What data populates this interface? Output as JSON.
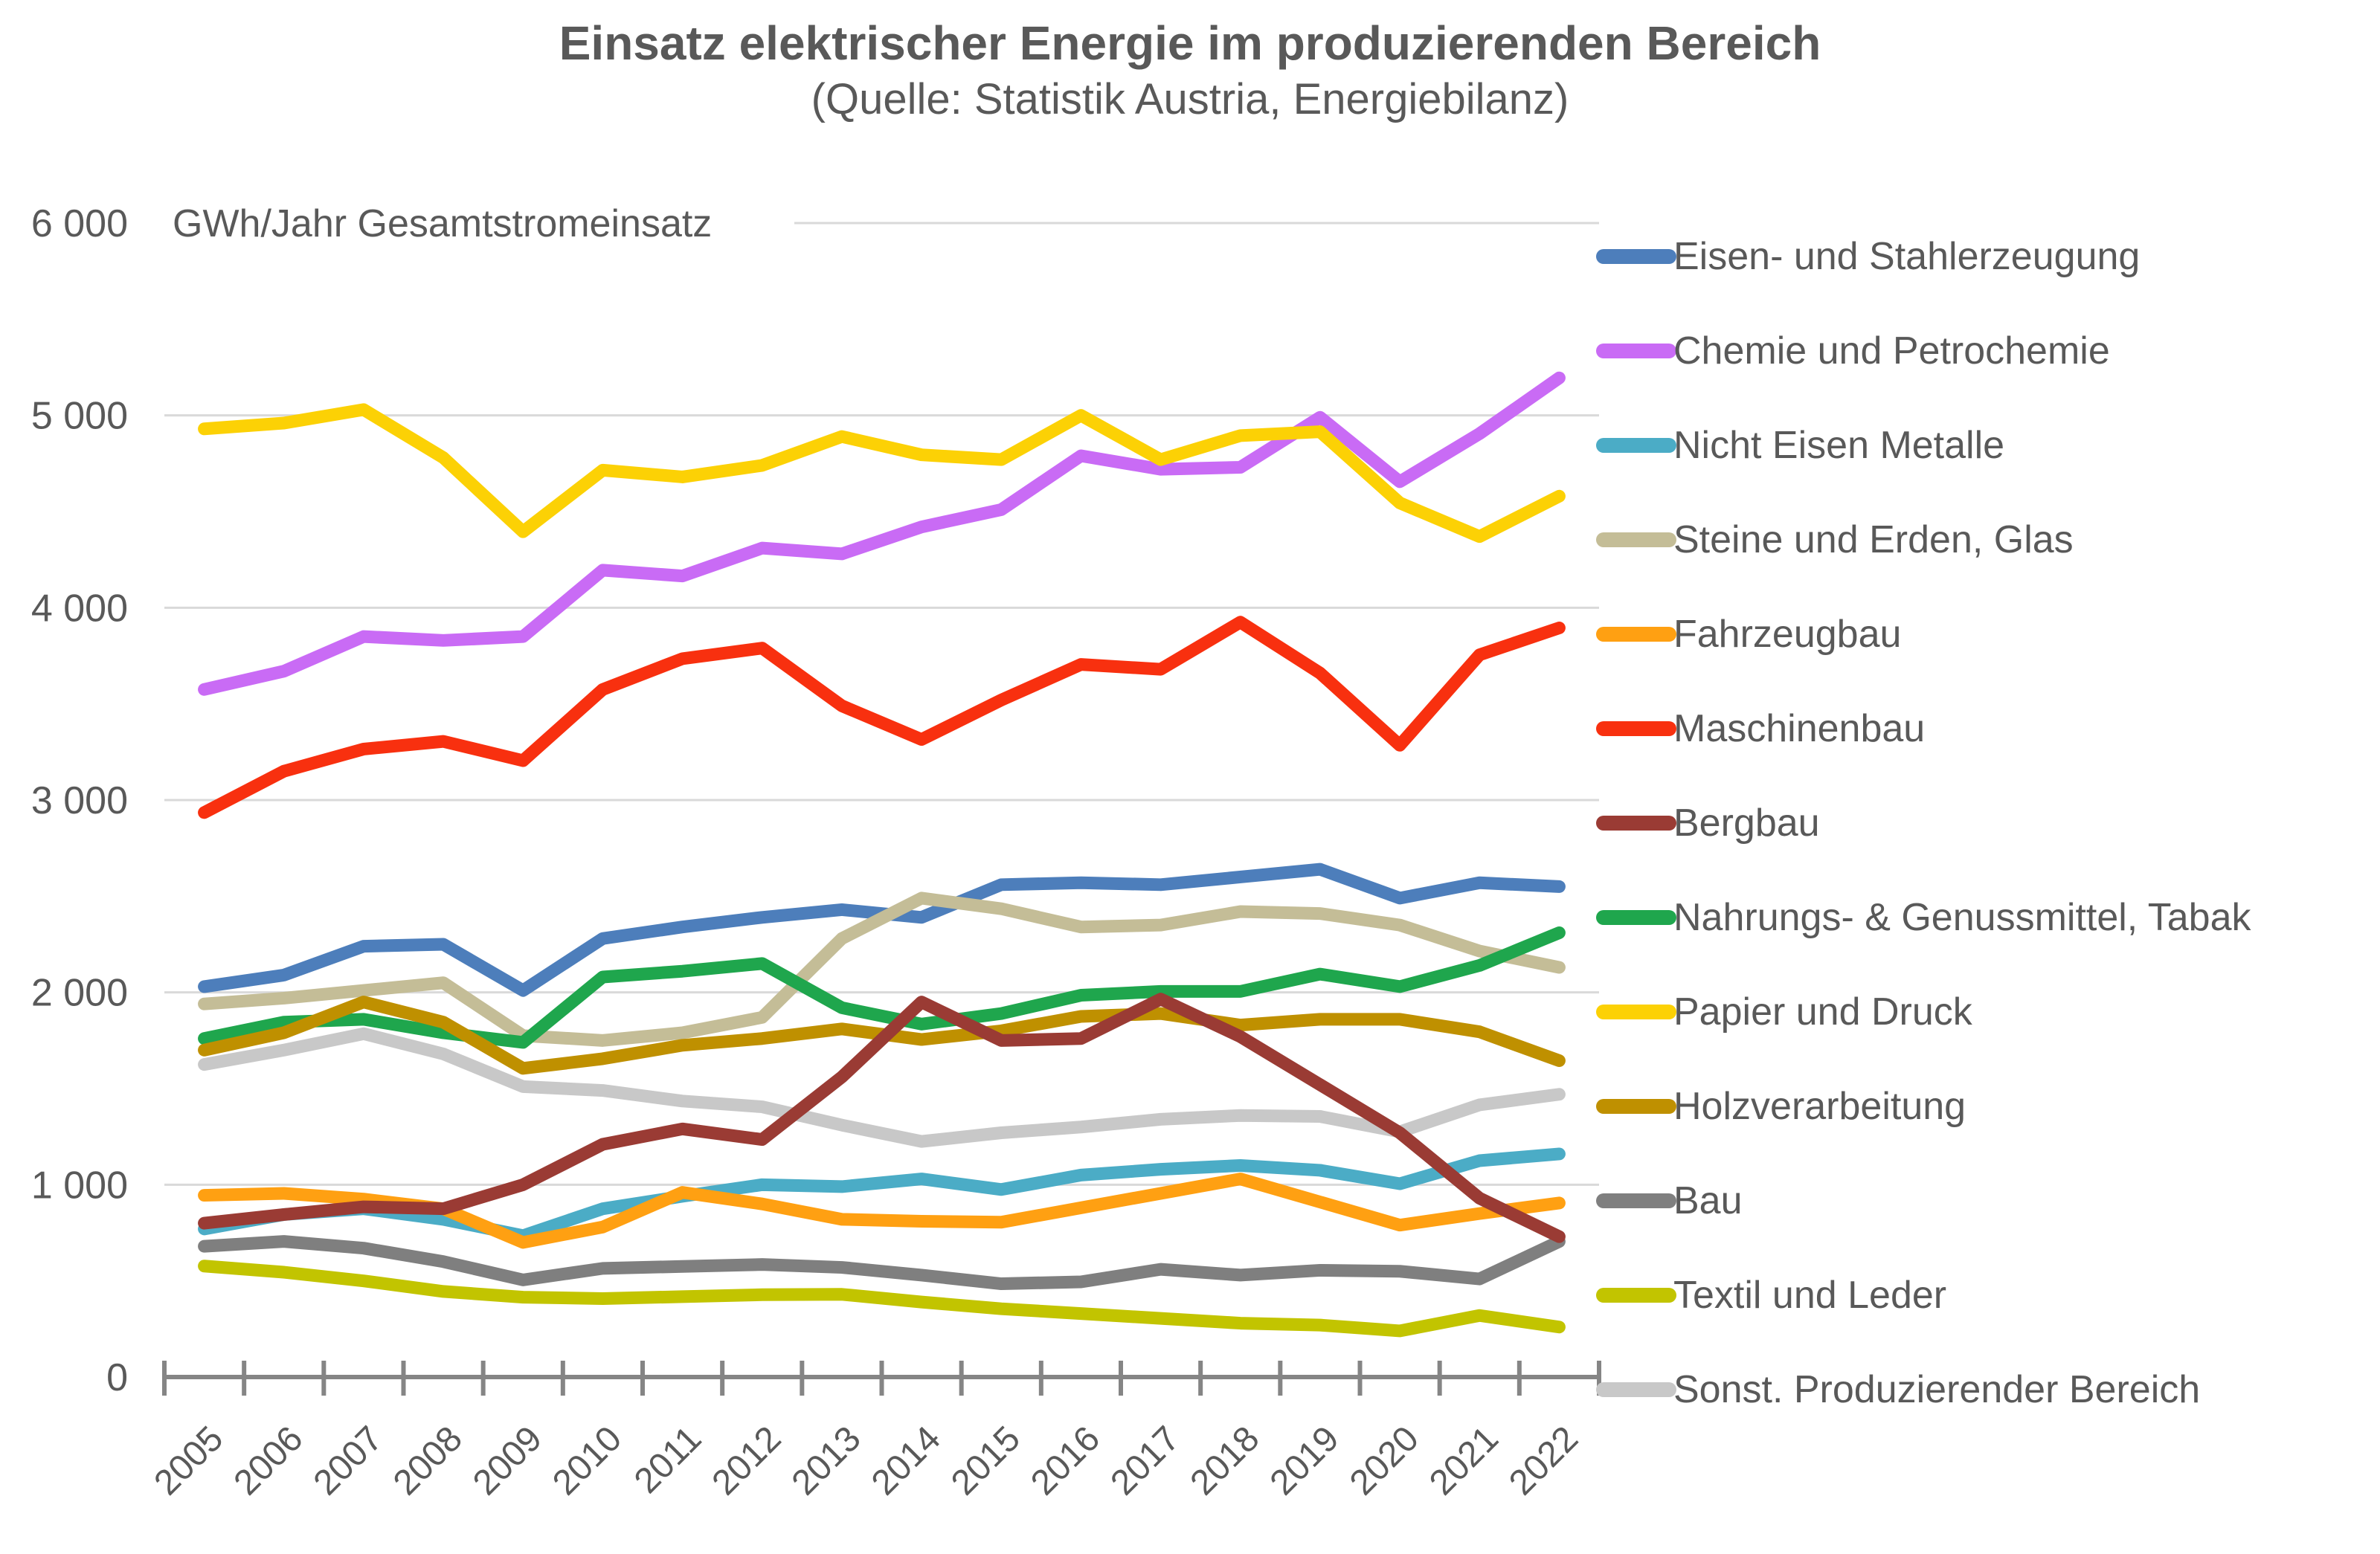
{
  "title": "Einsatz elektrischer Energie im produzierenden Bereich",
  "subtitle": "(Quelle: Statistik Austria, Energiebilanz)",
  "chart_data": {
    "type": "line",
    "unit_label": "GWh/Jahr Gesamtstromeinsatz",
    "categories": [
      2005,
      2006,
      2007,
      2008,
      2009,
      2010,
      2011,
      2012,
      2013,
      2014,
      2015,
      2016,
      2017,
      2018,
      2019,
      2020,
      2021,
      2022
    ],
    "ylim": [
      0,
      6000
    ],
    "yticks": [
      {
        "value": 6000,
        "label": "6 000"
      },
      {
        "value": 5000,
        "label": "5 000"
      },
      {
        "value": 4000,
        "label": "4 000"
      },
      {
        "value": 3000,
        "label": "3 000"
      },
      {
        "value": 2000,
        "label": "2 000"
      },
      {
        "value": 1000,
        "label": "1 000"
      },
      {
        "value": 0,
        "label": "0"
      }
    ],
    "grid": "horizontal",
    "legend_position": "right",
    "text_color": "#595959",
    "grid_color": "#D9D9D9",
    "axis_color": "#858585",
    "series": [
      {
        "name": "Eisen- und Stahlerzeugung",
        "color": "#4D7EBB",
        "values": [
          2030,
          2090,
          2240,
          2250,
          2010,
          2280,
          2340,
          2390,
          2430,
          2390,
          2560,
          2570,
          2560,
          2600,
          2640,
          2490,
          2570,
          2550
        ]
      },
      {
        "name": "Chemie und  Petrochemie",
        "color": "#C96BF5",
        "values": [
          3575,
          3670,
          3850,
          3830,
          3850,
          4195,
          4165,
          4310,
          4280,
          4420,
          4510,
          4790,
          4720,
          4730,
          4990,
          4655,
          4905,
          5195
        ]
      },
      {
        "name": "Nicht Eisen Metalle",
        "color": "#4BACC6",
        "values": [
          770,
          845,
          875,
          820,
          735,
          875,
          940,
          1000,
          990,
          1030,
          975,
          1050,
          1080,
          1100,
          1075,
          1005,
          1125,
          1160
        ]
      },
      {
        "name": "Steine und Erden, Glas",
        "color": "#C4BD97",
        "values": [
          1940,
          1970,
          2010,
          2050,
          1775,
          1750,
          1790,
          1870,
          2280,
          2490,
          2435,
          2340,
          2350,
          2420,
          2410,
          2350,
          2215,
          2130
        ]
      },
      {
        "name": "Fahrzeugbau",
        "color": "#FFA012",
        "values": [
          945,
          955,
          925,
          875,
          700,
          780,
          960,
          900,
          820,
          810,
          805,
          880,
          955,
          1030,
          910,
          790,
          850,
          905
        ]
      },
      {
        "name": "Maschinenbau",
        "color": "#F8300F",
        "values": [
          2935,
          3150,
          3265,
          3305,
          3205,
          3575,
          3735,
          3790,
          3490,
          3315,
          3520,
          3705,
          3680,
          3925,
          3660,
          3285,
          3755,
          3895
        ]
      },
      {
        "name": "Bergbau",
        "color": "#9A3B34",
        "values": [
          800,
          845,
          885,
          875,
          1000,
          1210,
          1290,
          1235,
          1560,
          1950,
          1750,
          1760,
          1965,
          1770,
          1520,
          1270,
          930,
          730
        ]
      },
      {
        "name": "Nahrungs- & Genussmittel, Tabak",
        "color": "#1FA64D",
        "values": [
          1760,
          1845,
          1860,
          1790,
          1740,
          2080,
          2110,
          2150,
          1920,
          1835,
          1890,
          1985,
          2005,
          2005,
          2095,
          2030,
          2140,
          2310
        ]
      },
      {
        "name": "Papier und Druck",
        "color": "#FCD105",
        "values": [
          4930,
          4960,
          5030,
          4780,
          4395,
          4715,
          4680,
          4740,
          4890,
          4795,
          4770,
          5000,
          4770,
          4895,
          4915,
          4545,
          4370,
          4580
        ]
      },
      {
        "name": "Holzverarbeitung",
        "color": "#BF9000",
        "values": [
          1700,
          1790,
          1950,
          1845,
          1605,
          1655,
          1725,
          1760,
          1810,
          1755,
          1800,
          1875,
          1890,
          1830,
          1860,
          1860,
          1795,
          1645
        ]
      },
      {
        "name": "Bau",
        "color": "#7F7F7F",
        "values": [
          680,
          705,
          670,
          600,
          505,
          565,
          575,
          585,
          570,
          530,
          485,
          495,
          560,
          530,
          555,
          550,
          510,
          705
        ]
      },
      {
        "name": "Textil und Leder",
        "color": "#C2C400",
        "values": [
          577,
          545,
          500,
          445,
          415,
          408,
          418,
          428,
          430,
          390,
          355,
          330,
          305,
          280,
          270,
          240,
          320,
          260
        ]
      },
      {
        "name": "Sonst. Produzierender Bereich",
        "color": "#C8C8C8",
        "values": [
          1625,
          1700,
          1785,
          1680,
          1510,
          1490,
          1435,
          1405,
          1310,
          1225,
          1270,
          1300,
          1340,
          1360,
          1355,
          1275,
          1415,
          1470
        ]
      }
    ]
  }
}
